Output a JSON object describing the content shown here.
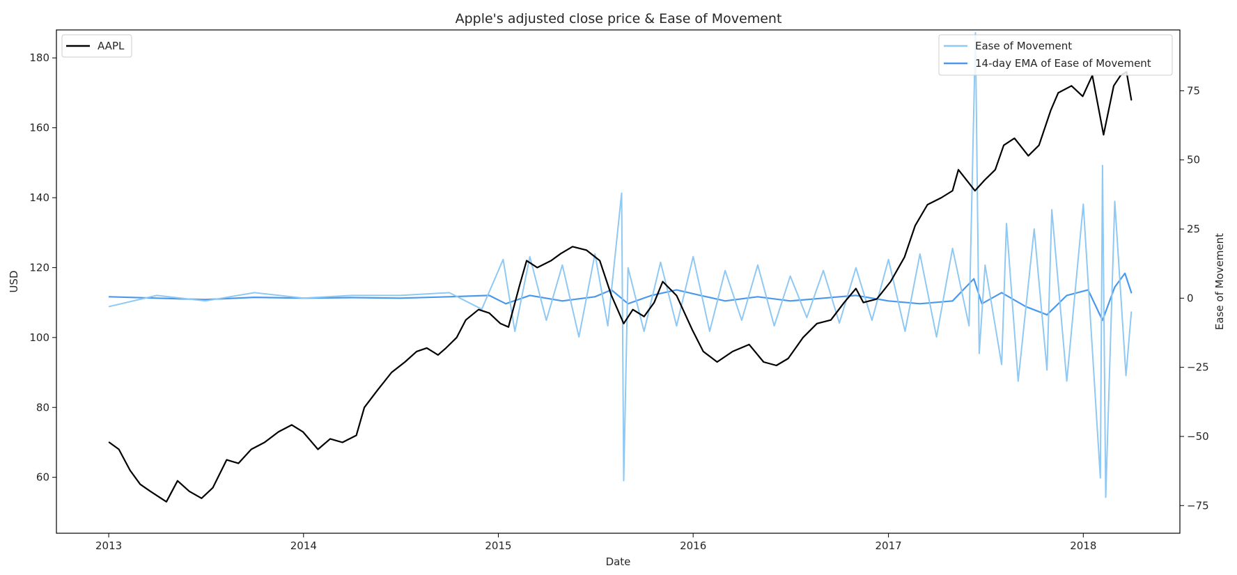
{
  "chart_data": {
    "type": "line",
    "title": "Apple's adjusted close price & Ease of Movement",
    "xlabel": "Date",
    "ylabel_left": "USD",
    "ylabel_right": "Ease of Movement",
    "x_range": [
      "2012-09-25",
      "2018-07-01"
    ],
    "ylim_left": [
      44,
      188
    ],
    "ylim_right": [
      -85,
      97
    ],
    "x_ticks": [
      "2013",
      "2014",
      "2015",
      "2016",
      "2017",
      "2018"
    ],
    "x_tick_dates": [
      "2013-01-01",
      "2014-01-01",
      "2015-01-01",
      "2016-01-01",
      "2017-01-01",
      "2018-01-01"
    ],
    "y_ticks_left": [
      60,
      80,
      100,
      120,
      140,
      160,
      180
    ],
    "y_ticks_left_labels": [
      "60",
      "80",
      "100",
      "120",
      "140",
      "160",
      "180"
    ],
    "y_ticks_right": [
      -75,
      -50,
      -25,
      0,
      25,
      50,
      75
    ],
    "y_ticks_right_labels": [
      "−75",
      "−50",
      "−25",
      "0",
      "25",
      "50",
      "75"
    ],
    "grid": false,
    "legends": [
      {
        "placement": "top-left",
        "entries": [
          "AAPL"
        ]
      },
      {
        "placement": "top-right",
        "entries": [
          "Ease of Movement",
          "14-day EMA of Ease of Movement"
        ]
      }
    ],
    "series": [
      {
        "name": "AAPL",
        "axis": "left",
        "color": "#000000",
        "x": [
          "2013-01-02",
          "2013-01-20",
          "2013-02-10",
          "2013-03-01",
          "2013-03-20",
          "2013-04-19",
          "2013-05-10",
          "2013-06-01",
          "2013-06-24",
          "2013-07-15",
          "2013-08-10",
          "2013-09-01",
          "2013-09-25",
          "2013-10-20",
          "2013-11-15",
          "2013-12-10",
          "2013-12-31",
          "2014-01-28",
          "2014-02-20",
          "2014-03-15",
          "2014-04-10",
          "2014-04-25",
          "2014-05-20",
          "2014-06-15",
          "2014-07-10",
          "2014-08-01",
          "2014-08-20",
          "2014-09-10",
          "2014-09-25",
          "2014-10-15",
          "2014-11-01",
          "2014-11-25",
          "2014-12-15",
          "2015-01-05",
          "2015-01-20",
          "2015-02-10",
          "2015-02-23",
          "2015-03-15",
          "2015-04-10",
          "2015-04-28",
          "2015-05-20",
          "2015-06-15",
          "2015-07-10",
          "2015-08-01",
          "2015-08-24",
          "2015-09-10",
          "2015-10-01",
          "2015-10-20",
          "2015-11-05",
          "2015-12-01",
          "2015-12-31",
          "2016-01-20",
          "2016-02-15",
          "2016-03-15",
          "2016-04-15",
          "2016-05-12",
          "2016-06-05",
          "2016-06-27",
          "2016-07-25",
          "2016-08-20",
          "2016-09-15",
          "2016-10-10",
          "2016-11-01",
          "2016-11-15",
          "2016-12-10",
          "2017-01-05",
          "2017-01-31",
          "2017-02-20",
          "2017-03-15",
          "2017-04-10",
          "2017-05-01",
          "2017-05-12",
          "2017-06-12",
          "2017-06-30",
          "2017-07-20",
          "2017-08-05",
          "2017-08-25",
          "2017-09-20",
          "2017-10-10",
          "2017-11-01",
          "2017-11-15",
          "2017-12-10",
          "2017-12-31",
          "2018-01-18",
          "2018-02-08",
          "2018-02-27",
          "2018-03-12",
          "2018-03-23",
          "2018-04-01"
        ],
        "values": [
          70,
          68,
          62,
          58,
          56,
          53,
          59,
          56,
          54,
          57,
          65,
          64,
          68,
          70,
          73,
          75,
          73,
          68,
          71,
          70,
          72,
          80,
          85,
          90,
          93,
          96,
          97,
          95,
          97,
          100,
          105,
          108,
          107,
          104,
          103,
          115,
          122,
          120,
          122,
          124,
          126,
          125,
          122,
          112,
          104,
          108,
          106,
          110,
          116,
          112,
          102,
          96,
          93,
          96,
          98,
          93,
          92,
          94,
          100,
          104,
          105,
          110,
          114,
          110,
          111,
          116,
          123,
          132,
          138,
          140,
          142,
          148,
          142,
          145,
          148,
          155,
          157,
          152,
          155,
          165,
          170,
          172,
          169,
          175,
          158,
          172,
          175,
          176,
          168
        ]
      },
      {
        "name": "Ease of Movement",
        "axis": "right",
        "color": "#8ec8f3",
        "x": [
          "2013-01-02",
          "2013-04-01",
          "2013-07-01",
          "2013-10-01",
          "2014-01-01",
          "2014-04-01",
          "2014-07-01",
          "2014-10-01",
          "2014-12-01",
          "2015-01-10",
          "2015-02-01",
          "2015-03-01",
          "2015-04-01",
          "2015-05-01",
          "2015-06-01",
          "2015-07-01",
          "2015-07-25",
          "2015-08-20",
          "2015-08-24",
          "2015-09-01",
          "2015-10-01",
          "2015-11-01",
          "2015-12-01",
          "2016-01-01",
          "2016-02-01",
          "2016-03-01",
          "2016-04-01",
          "2016-05-01",
          "2016-06-01",
          "2016-07-01",
          "2016-08-01",
          "2016-09-01",
          "2016-10-01",
          "2016-11-01",
          "2016-12-01",
          "2017-01-01",
          "2017-02-01",
          "2017-03-01",
          "2017-04-01",
          "2017-05-01",
          "2017-06-01",
          "2017-06-13",
          "2017-06-20",
          "2017-07-01",
          "2017-08-01",
          "2017-08-10",
          "2017-09-01",
          "2017-10-01",
          "2017-10-25",
          "2017-11-03",
          "2017-12-01",
          "2018-01-01",
          "2018-02-02",
          "2018-02-06",
          "2018-02-12",
          "2018-03-01",
          "2018-03-22",
          "2018-04-01"
        ],
        "values": [
          -3,
          1,
          -1,
          2,
          0,
          1,
          1,
          2,
          -4,
          14,
          -12,
          15,
          -8,
          12,
          -14,
          16,
          -10,
          38,
          -66,
          11,
          -12,
          13,
          -10,
          15,
          -12,
          10,
          -8,
          12,
          -10,
          8,
          -7,
          10,
          -9,
          11,
          -8,
          14,
          -12,
          16,
          -14,
          18,
          -10,
          96,
          -20,
          12,
          -24,
          27,
          -30,
          25,
          -26,
          32,
          -30,
          34,
          -65,
          48,
          -72,
          35,
          -28,
          -5
        ]
      },
      {
        "name": "14-day EMA of Ease of Movement",
        "axis": "right",
        "color": "#4a98ec",
        "x": [
          "2013-01-02",
          "2013-04-01",
          "2013-07-01",
          "2013-10-01",
          "2014-01-01",
          "2014-04-01",
          "2014-07-01",
          "2014-10-01",
          "2014-12-15",
          "2015-01-15",
          "2015-03-01",
          "2015-05-01",
          "2015-07-01",
          "2015-08-01",
          "2015-09-01",
          "2015-10-15",
          "2015-12-01",
          "2016-01-15",
          "2016-03-01",
          "2016-05-01",
          "2016-07-01",
          "2016-09-01",
          "2016-11-01",
          "2017-01-01",
          "2017-03-01",
          "2017-05-01",
          "2017-06-10",
          "2017-06-25",
          "2017-08-01",
          "2017-09-15",
          "2017-10-25",
          "2017-12-01",
          "2018-01-10",
          "2018-02-06",
          "2018-03-01",
          "2018-03-20",
          "2018-04-01"
        ],
        "values": [
          0.5,
          0,
          -0.5,
          0.3,
          0,
          0.2,
          0,
          0.5,
          1,
          -2,
          1,
          -1,
          0.5,
          3,
          -2,
          1,
          3,
          1,
          -1,
          0.5,
          -1,
          0,
          1,
          -1,
          -2,
          -1,
          7,
          -2,
          2,
          -3,
          -6,
          1,
          3,
          -8,
          4,
          9,
          2
        ]
      }
    ]
  }
}
